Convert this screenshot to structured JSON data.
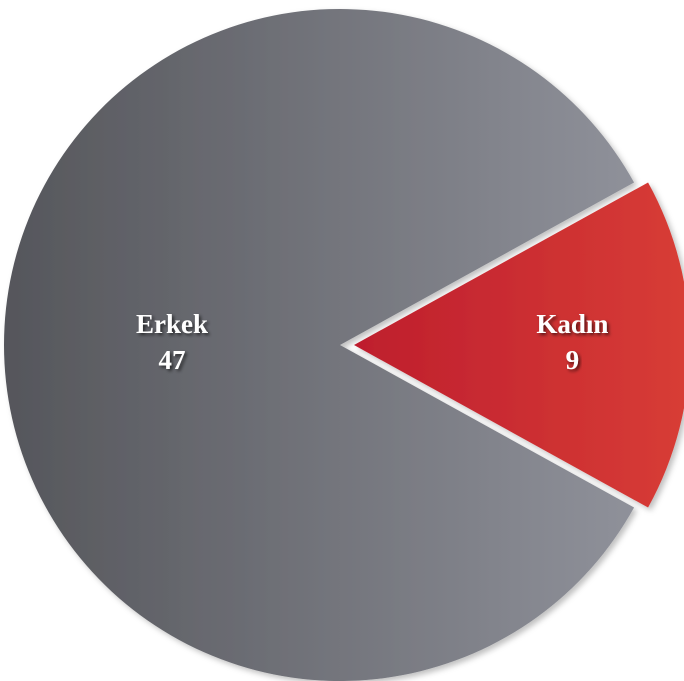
{
  "chart_data": {
    "type": "pie",
    "categories": [
      "Erkek",
      "Kadın"
    ],
    "values": [
      47,
      9
    ],
    "colors": [
      [
        "#55565b",
        "#8f919a"
      ],
      [
        "#be1e2d",
        "#d83d36"
      ]
    ],
    "explode": [
      false,
      true
    ]
  }
}
